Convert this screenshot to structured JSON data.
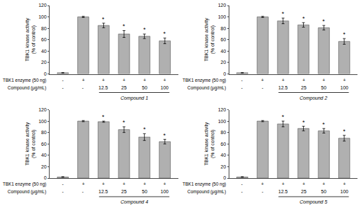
{
  "chart_data": [
    {
      "type": "bar",
      "categories": [
        null,
        null,
        null,
        null,
        null,
        null
      ],
      "values": [
        2,
        100,
        85,
        70,
        66,
        58
      ],
      "errors": [
        0.5,
        1,
        4,
        6,
        4,
        5
      ],
      "color": "#b0b0b0",
      "edge_color": "#555555",
      "ylabel": "TBK1 kinase activity\n(% of control)",
      "ylim": [
        0,
        120
      ],
      "yticks": [
        0,
        20,
        40,
        60,
        80,
        100,
        120
      ],
      "grid": false,
      "tick_labels": "y",
      "annotations": [
        {
          "text": "TBK1 enzyme (50 ng)",
          "labels": [
            "-",
            "+",
            "+",
            "+",
            "+",
            "+"
          ]
        },
        {
          "text": "Compound (μg/mL)",
          "labels": [
            "-",
            "-",
            "12.5",
            "25",
            "50",
            "100"
          ]
        },
        {
          "text": "Compound 1",
          "span": [
            2,
            5
          ]
        }
      ],
      "stars": {
        "text": "*",
        "at": [
          2,
          3,
          4,
          5
        ]
      }
    },
    {
      "type": "bar",
      "categories": [
        null,
        null,
        null,
        null,
        null,
        null
      ],
      "values": [
        2,
        100,
        93,
        86,
        81,
        57
      ],
      "errors": [
        0.5,
        1,
        5,
        4,
        4,
        5
      ],
      "color": "#b0b0b0",
      "edge_color": "#555555",
      "ylabel": "TBK1 kinase activity\n(% of control)",
      "ylim": [
        0,
        120
      ],
      "yticks": [
        0,
        20,
        40,
        60,
        80,
        100,
        120
      ],
      "grid": false,
      "tick_labels": "y",
      "annotations": [
        {
          "text": "TBK1 enzyme (50 ng)",
          "labels": [
            "-",
            "+",
            "+",
            "+",
            "+",
            "+"
          ]
        },
        {
          "text": "Compound (μg/mL)",
          "labels": [
            "-",
            "-",
            "12.5",
            "25",
            "50",
            "100"
          ]
        },
        {
          "text": "Compound 2",
          "span": [
            2,
            5
          ]
        }
      ],
      "stars": {
        "text": "*",
        "at": [
          2,
          3,
          4,
          5
        ]
      }
    },
    {
      "type": "bar",
      "categories": [
        null,
        null,
        null,
        null,
        null,
        null
      ],
      "values": [
        2,
        100,
        99,
        85,
        72,
        64
      ],
      "errors": [
        0.5,
        1,
        1,
        5,
        6,
        4
      ],
      "color": "#b0b0b0",
      "edge_color": "#555555",
      "ylabel": "TBK1 kinase activity\n(% of control)",
      "ylim": [
        0,
        120
      ],
      "yticks": [
        0,
        20,
        40,
        60,
        80,
        100,
        120
      ],
      "grid": false,
      "tick_labels": "y",
      "annotations": [
        {
          "text": "TBK1 enzyme (50 ng)",
          "labels": [
            "-",
            "+",
            "+",
            "+",
            "+",
            "+"
          ]
        },
        {
          "text": "Compound (μg/mL)",
          "labels": [
            "-",
            "-",
            "12.5",
            "25",
            "50",
            "100"
          ]
        },
        {
          "text": "Compound 4",
          "span": [
            2,
            5
          ]
        }
      ],
      "stars": {
        "text": "*",
        "at": [
          2,
          3,
          4,
          5
        ]
      }
    },
    {
      "type": "bar",
      "categories": [
        null,
        null,
        null,
        null,
        null,
        null
      ],
      "values": [
        2,
        100,
        95,
        87,
        83,
        70
      ],
      "errors": [
        0.5,
        1,
        5,
        4,
        4,
        5
      ],
      "color": "#b0b0b0",
      "edge_color": "#555555",
      "ylabel": "TBK1 kinase activity\n(% of control)",
      "ylim": [
        0,
        120
      ],
      "yticks": [
        0,
        20,
        40,
        60,
        80,
        100,
        120
      ],
      "grid": false,
      "tick_labels": "y",
      "annotations": [
        {
          "text": "TBK1 enzyme (50 ng)",
          "labels": [
            "-",
            "+",
            "+",
            "+",
            "+",
            "+"
          ]
        },
        {
          "text": "Compound (μg/mL)",
          "labels": [
            "-",
            "-",
            "12.5",
            "25",
            "50",
            "100"
          ]
        },
        {
          "text": "Compound 5",
          "span": [
            2,
            5
          ]
        }
      ],
      "stars": {
        "text": "*",
        "at": [
          2,
          3,
          4,
          5
        ]
      }
    }
  ]
}
